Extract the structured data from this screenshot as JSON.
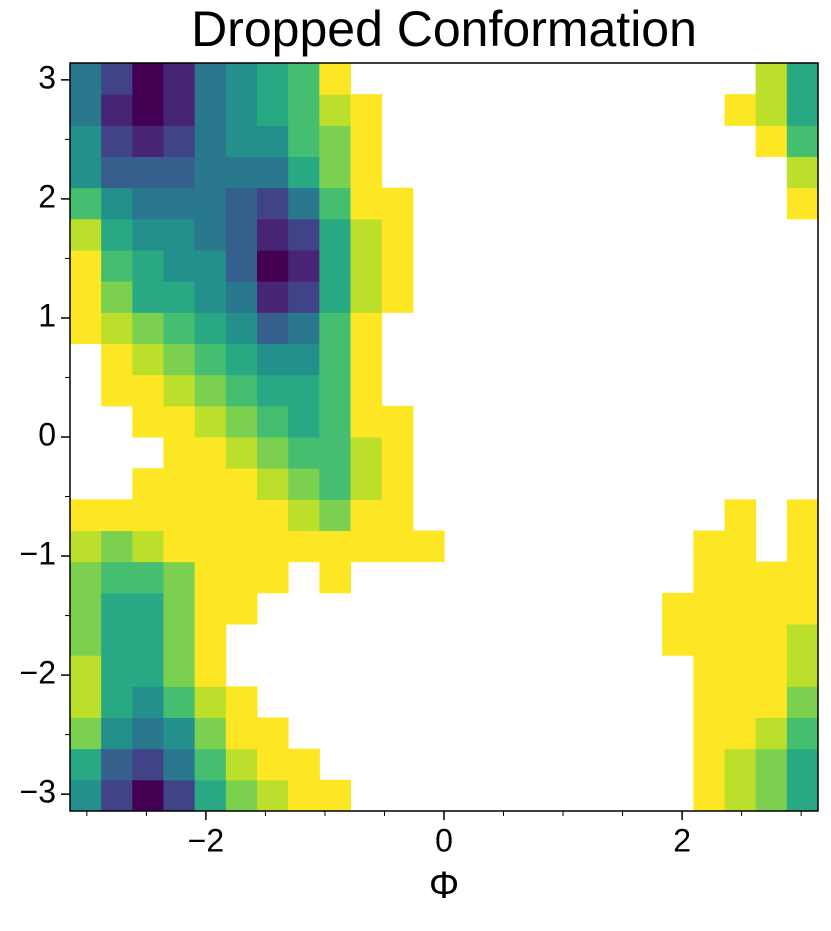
{
  "chart_data": {
    "type": "heatmap",
    "title": "Dropped Conformation",
    "xlabel": "Φ",
    "xlim": [
      -3.1416,
      3.1416
    ],
    "ylim": [
      -3.1416,
      3.1416
    ],
    "xticks": [
      {
        "value": -2,
        "label": "−2"
      },
      0,
      2
    ],
    "yticks": [
      {
        "value": -3,
        "label": "−3"
      },
      {
        "value": -2,
        "label": "−2"
      },
      {
        "value": -1,
        "label": "−1"
      },
      0,
      1,
      2,
      3
    ],
    "xminorticks": [
      -3,
      -2.5,
      -1.5,
      -1,
      -0.5,
      0.5,
      1,
      1.5,
      2.5,
      3
    ],
    "yminorticks": [
      -2.5,
      -1.5,
      -0.5,
      0.5,
      1.5,
      2.5
    ],
    "colormap": "viridis_r",
    "zlim": [
      0,
      10
    ],
    "xbins": [
      -3.1416,
      -2.8798,
      -2.618,
      -2.3562,
      -2.0944,
      -1.8326,
      -1.5708,
      -1.309,
      -1.0472,
      -0.7854,
      -0.5236,
      -0.2618,
      0,
      0.2618,
      0.5236,
      0.7854,
      1.0472,
      1.309,
      1.5708,
      1.8326,
      2.0944,
      2.3562,
      2.618,
      2.8798,
      3.1416
    ],
    "ybins": [
      -3.1416,
      -2.8798,
      -2.618,
      -2.3562,
      -2.0944,
      -1.8326,
      -1.5708,
      -1.309,
      -1.0472,
      -0.7854,
      -0.5236,
      -0.2618,
      0,
      0.2618,
      0.5236,
      0.7854,
      1.0472,
      1.309,
      1.5708,
      1.8326,
      2.0944,
      2.3562,
      2.618,
      2.8798,
      3.1416
    ],
    "values": [
      [
        5,
        8,
        10,
        8,
        4,
        2,
        1,
        0,
        0,
        null,
        null,
        null,
        null,
        null,
        null,
        null,
        null,
        null,
        null,
        null,
        0,
        1,
        2,
        4
      ],
      [
        4,
        7,
        8,
        6,
        3,
        1,
        0,
        0,
        null,
        null,
        null,
        null,
        null,
        null,
        null,
        null,
        null,
        null,
        null,
        null,
        0,
        1,
        2,
        4
      ],
      [
        2,
        5,
        6,
        5,
        2,
        0,
        0,
        null,
        null,
        null,
        null,
        null,
        null,
        null,
        null,
        null,
        null,
        null,
        null,
        null,
        0,
        0,
        1,
        3
      ],
      [
        1,
        4,
        5,
        3,
        1,
        0,
        null,
        null,
        null,
        null,
        null,
        null,
        null,
        null,
        null,
        null,
        null,
        null,
        null,
        null,
        0,
        0,
        0,
        2
      ],
      [
        1,
        4,
        4,
        2,
        0,
        null,
        null,
        null,
        null,
        null,
        null,
        null,
        null,
        null,
        null,
        null,
        null,
        null,
        null,
        null,
        0,
        0,
        0,
        1
      ],
      [
        2,
        4,
        4,
        2,
        0,
        null,
        null,
        null,
        null,
        null,
        null,
        null,
        null,
        null,
        null,
        null,
        null,
        null,
        null,
        0,
        0,
        0,
        0,
        1
      ],
      [
        2,
        4,
        4,
        2,
        0,
        0,
        null,
        null,
        null,
        null,
        null,
        null,
        null,
        null,
        null,
        null,
        null,
        null,
        null,
        0,
        0,
        0,
        0,
        0
      ],
      [
        2,
        3,
        3,
        2,
        0,
        0,
        0,
        null,
        0,
        null,
        null,
        null,
        null,
        null,
        null,
        null,
        null,
        null,
        null,
        null,
        0,
        0,
        0,
        0
      ],
      [
        1,
        2,
        1,
        0,
        0,
        0,
        0,
        0,
        0,
        0,
        0,
        0,
        null,
        null,
        null,
        null,
        null,
        null,
        null,
        null,
        0,
        0,
        null,
        0
      ],
      [
        0,
        0,
        0,
        0,
        0,
        0,
        0,
        1,
        2,
        0,
        0,
        null,
        null,
        null,
        null,
        null,
        null,
        null,
        null,
        null,
        null,
        0,
        null,
        0
      ],
      [
        null,
        null,
        0,
        0,
        0,
        0,
        1,
        2,
        3,
        1,
        0,
        null,
        null,
        null,
        null,
        null,
        null,
        null,
        null,
        null,
        null,
        null,
        null,
        null
      ],
      [
        null,
        null,
        null,
        0,
        0,
        1,
        2,
        3,
        3,
        1,
        0,
        null,
        null,
        null,
        null,
        null,
        null,
        null,
        null,
        null,
        null,
        null,
        null,
        null
      ],
      [
        null,
        null,
        0,
        0,
        1,
        2,
        3,
        4,
        3,
        0,
        0,
        null,
        null,
        null,
        null,
        null,
        null,
        null,
        null,
        null,
        null,
        null,
        null,
        null
      ],
      [
        null,
        0,
        0,
        1,
        2,
        3,
        4,
        4,
        3,
        0,
        null,
        null,
        null,
        null,
        null,
        null,
        null,
        null,
        null,
        null,
        null,
        null,
        null,
        null
      ],
      [
        null,
        0,
        1,
        2,
        3,
        4,
        5,
        5,
        3,
        0,
        null,
        null,
        null,
        null,
        null,
        null,
        null,
        null,
        null,
        null,
        null,
        null,
        null,
        null
      ],
      [
        0,
        1,
        2,
        3,
        4,
        5,
        7,
        6,
        3,
        0,
        null,
        null,
        null,
        null,
        null,
        null,
        null,
        null,
        null,
        null,
        null,
        null,
        null,
        null
      ],
      [
        0,
        2,
        4,
        4,
        5,
        6,
        9,
        8,
        4,
        1,
        0,
        null,
        null,
        null,
        null,
        null,
        null,
        null,
        null,
        null,
        null,
        null,
        null,
        null
      ],
      [
        0,
        3,
        4,
        5,
        5,
        7,
        10,
        9,
        4,
        1,
        0,
        null,
        null,
        null,
        null,
        null,
        null,
        null,
        null,
        null,
        null,
        null,
        null,
        null
      ],
      [
        1,
        4,
        5,
        5,
        6,
        7,
        9,
        8,
        4,
        1,
        0,
        null,
        null,
        null,
        null,
        null,
        null,
        null,
        null,
        null,
        null,
        null,
        null,
        null
      ],
      [
        3,
        5,
        6,
        6,
        6,
        7,
        8,
        6,
        3,
        0,
        0,
        null,
        null,
        null,
        null,
        null,
        null,
        null,
        null,
        null,
        null,
        null,
        null,
        0
      ],
      [
        5,
        7,
        7,
        7,
        6,
        6,
        6,
        4,
        2,
        0,
        null,
        null,
        null,
        null,
        null,
        null,
        null,
        null,
        null,
        null,
        null,
        null,
        null,
        1
      ],
      [
        5,
        8,
        9,
        8,
        6,
        5,
        5,
        3,
        2,
        0,
        null,
        null,
        null,
        null,
        null,
        null,
        null,
        null,
        null,
        null,
        null,
        null,
        0,
        3
      ],
      [
        6,
        9,
        10,
        9,
        6,
        5,
        4,
        3,
        1,
        0,
        null,
        null,
        null,
        null,
        null,
        null,
        null,
        null,
        null,
        null,
        null,
        0,
        1,
        4
      ],
      [
        6,
        8,
        10,
        9,
        6,
        5,
        4,
        3,
        0,
        null,
        null,
        null,
        null,
        null,
        null,
        null,
        null,
        null,
        null,
        null,
        null,
        null,
        1,
        4
      ]
    ]
  }
}
